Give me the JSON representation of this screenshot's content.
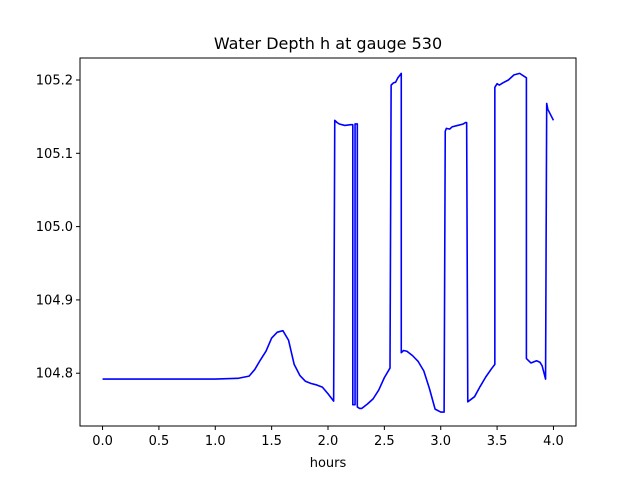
{
  "chart_data": {
    "type": "line",
    "title": "Water Depth h at gauge 530",
    "xlabel": "hours",
    "ylabel": "",
    "xlim": [
      -0.2,
      4.2
    ],
    "ylim": [
      104.728,
      105.23
    ],
    "xticks": [
      0.0,
      0.5,
      1.0,
      1.5,
      2.0,
      2.5,
      3.0,
      3.5,
      4.0
    ],
    "xtick_labels": [
      "0.0",
      "0.5",
      "1.0",
      "1.5",
      "2.0",
      "2.5",
      "3.0",
      "3.5",
      "4.0"
    ],
    "yticks": [
      104.8,
      104.9,
      105.0,
      105.1,
      105.2
    ],
    "ytick_labels": [
      "104.8",
      "104.9",
      "105.0",
      "105.1",
      "105.2"
    ],
    "grid": false,
    "series": [
      {
        "color": "#0000ff",
        "x": [
          0.0,
          0.5,
          1.0,
          1.2,
          1.3,
          1.35,
          1.4,
          1.45,
          1.5,
          1.55,
          1.6,
          1.65,
          1.7,
          1.75,
          1.8,
          1.85,
          1.9,
          1.95,
          2.0,
          2.05,
          2.06,
          2.08,
          2.1,
          2.15,
          2.2,
          2.22,
          2.22,
          2.24,
          2.24,
          2.26,
          2.26,
          2.28,
          2.3,
          2.35,
          2.4,
          2.45,
          2.5,
          2.55,
          2.56,
          2.58,
          2.6,
          2.62,
          2.64,
          2.65,
          2.65,
          2.67,
          2.7,
          2.75,
          2.8,
          2.85,
          2.9,
          2.95,
          3.0,
          3.03,
          3.04,
          3.05,
          3.08,
          3.1,
          3.15,
          3.2,
          3.22,
          3.23,
          3.24,
          3.3,
          3.35,
          3.4,
          3.45,
          3.48,
          3.48,
          3.5,
          3.52,
          3.55,
          3.6,
          3.65,
          3.7,
          3.75,
          3.76,
          3.76,
          3.8,
          3.85,
          3.88,
          3.9,
          3.93,
          3.94,
          3.95,
          4.0
        ],
        "y": [
          104.792,
          104.792,
          104.792,
          104.793,
          104.796,
          104.805,
          104.818,
          104.83,
          104.848,
          104.856,
          104.858,
          104.845,
          104.812,
          104.797,
          104.789,
          104.786,
          104.784,
          104.781,
          104.772,
          104.762,
          105.145,
          105.142,
          105.14,
          105.138,
          105.139,
          105.139,
          104.757,
          104.757,
          105.14,
          105.14,
          104.754,
          104.752,
          104.752,
          104.758,
          104.765,
          104.777,
          104.794,
          104.807,
          105.193,
          105.196,
          105.197,
          105.203,
          105.207,
          105.209,
          104.828,
          104.831,
          104.83,
          104.824,
          104.816,
          104.803,
          104.779,
          104.751,
          104.747,
          104.747,
          105.13,
          105.134,
          105.133,
          105.136,
          105.138,
          105.14,
          105.142,
          105.142,
          104.761,
          104.768,
          104.782,
          104.795,
          104.806,
          104.812,
          105.19,
          105.195,
          105.193,
          105.196,
          105.2,
          105.207,
          105.209,
          105.204,
          105.203,
          104.82,
          104.814,
          104.817,
          104.815,
          104.81,
          104.792,
          105.168,
          105.16,
          105.145
        ]
      }
    ]
  }
}
